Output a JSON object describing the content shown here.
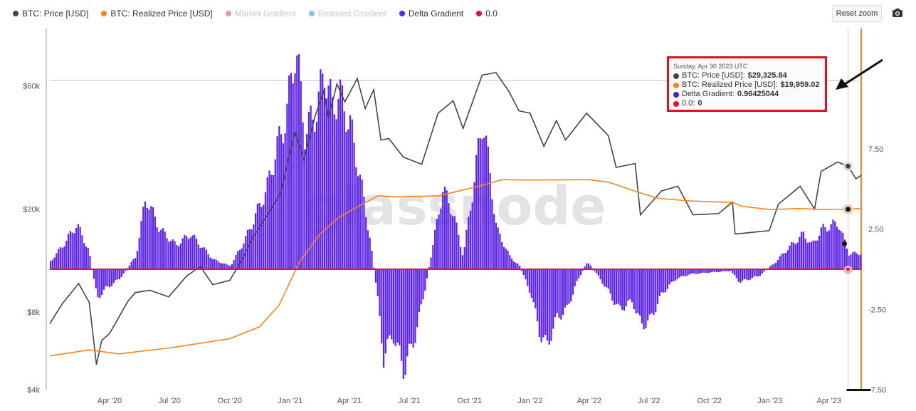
{
  "legend": [
    {
      "label": "BTC: Price [USD]",
      "color": "#444444",
      "enabled": true
    },
    {
      "label": "BTC: Realized Price [USD]",
      "color": "#f7851a",
      "enabled": true
    },
    {
      "label": "Market Gradient",
      "color": "#e07aa8",
      "enabled": false
    },
    {
      "label": "Realised Gradient",
      "color": "#5bbcd6",
      "enabled": false
    },
    {
      "label": "Delta Gradient",
      "color": "#5a1ff5",
      "enabled": true
    },
    {
      "label": "0.0",
      "color": "#e8102e",
      "enabled": true
    }
  ],
  "toolbar": {
    "reset_label": "Reset zoom",
    "camera_icon": "camera-icon"
  },
  "watermark": "glassnode",
  "tooltip": {
    "date": "Sunday, Apr 30 2023 UTC",
    "rows": [
      {
        "label": "BTC: Price [USD]: ",
        "value": "$29,325.84",
        "color": "#444444"
      },
      {
        "label": "BTC: Realized Price [USD]: ",
        "value": "$19,959.02",
        "color": "#f7851a"
      },
      {
        "label": "Delta Gradient: ",
        "value": "0.96425044",
        "color": "#3b1ee0"
      },
      {
        "label": "0.0: ",
        "value": "0",
        "color": "#e8102e"
      }
    ]
  },
  "chart_data": {
    "type": "line",
    "x_tick_labels": [
      "Apr '20",
      "Jul '20",
      "Oct '20",
      "Jan '21",
      "Apr '21",
      "Jul '21",
      "Oct '21",
      "Jan '22",
      "Apr '22",
      "Jul '22",
      "Oct '22",
      "Jan '23",
      "Apr '23"
    ],
    "y_left": {
      "scale": "log",
      "ticks": [
        "$4k",
        "$8k",
        "$20k",
        "$60k"
      ],
      "tick_values": [
        4000,
        8000,
        20000,
        60000
      ],
      "range": [
        4000,
        100000
      ]
    },
    "y_right": {
      "ticks": [
        "7.50",
        "2.50",
        "-2.50",
        "-7.50"
      ],
      "tick_values": [
        7.5,
        2.5,
        -2.5,
        -7.5
      ],
      "range": [
        -7.5,
        15
      ]
    },
    "x_range": [
      "2020-01-01",
      "2023-05-20"
    ],
    "series": [
      {
        "name": "BTC: Price [USD]",
        "axis": "left",
        "color": "#444444",
        "points": [
          [
            "2020-01-01",
            7200
          ],
          [
            "2020-01-20",
            8600
          ],
          [
            "2020-02-14",
            10300
          ],
          [
            "2020-03-01",
            8700
          ],
          [
            "2020-03-12",
            5000
          ],
          [
            "2020-03-20",
            6200
          ],
          [
            "2020-04-01",
            6600
          ],
          [
            "2020-04-29",
            8800
          ],
          [
            "2020-05-10",
            9500
          ],
          [
            "2020-06-01",
            9700
          ],
          [
            "2020-06-30",
            9150
          ],
          [
            "2020-07-27",
            11000
          ],
          [
            "2020-08-17",
            12000
          ],
          [
            "2020-09-05",
            10200
          ],
          [
            "2020-10-01",
            10600
          ],
          [
            "2020-10-21",
            12900
          ],
          [
            "2020-11-05",
            15500
          ],
          [
            "2020-11-30",
            19500
          ],
          [
            "2020-12-17",
            23000
          ],
          [
            "2021-01-08",
            40000
          ],
          [
            "2021-01-22",
            31000
          ],
          [
            "2021-02-08",
            46000
          ],
          [
            "2021-02-21",
            57000
          ],
          [
            "2021-02-28",
            45000
          ],
          [
            "2021-03-13",
            61000
          ],
          [
            "2021-03-25",
            52000
          ],
          [
            "2021-04-13",
            64000
          ],
          [
            "2021-04-25",
            49000
          ],
          [
            "2021-05-08",
            58000
          ],
          [
            "2021-05-19",
            37000
          ],
          [
            "2021-05-31",
            37500
          ],
          [
            "2021-06-22",
            31800
          ],
          [
            "2021-07-20",
            29800
          ],
          [
            "2021-08-14",
            47000
          ],
          [
            "2021-09-06",
            52500
          ],
          [
            "2021-09-21",
            41000
          ],
          [
            "2021-10-20",
            66000
          ],
          [
            "2021-11-10",
            67500
          ],
          [
            "2021-11-30",
            57000
          ],
          [
            "2021-12-15",
            48000
          ],
          [
            "2022-01-01",
            47000
          ],
          [
            "2022-01-22",
            35000
          ],
          [
            "2022-02-10",
            44000
          ],
          [
            "2022-02-24",
            37000
          ],
          [
            "2022-03-28",
            47000
          ],
          [
            "2022-04-30",
            38500
          ],
          [
            "2022-05-12",
            29000
          ],
          [
            "2022-06-10",
            30000
          ],
          [
            "2022-06-18",
            19000
          ],
          [
            "2022-07-20",
            23500
          ],
          [
            "2022-08-14",
            24500
          ],
          [
            "2022-09-06",
            19000
          ],
          [
            "2022-10-15",
            19200
          ],
          [
            "2022-11-05",
            21300
          ],
          [
            "2022-11-09",
            16000
          ],
          [
            "2022-12-31",
            16500
          ],
          [
            "2023-01-14",
            20900
          ],
          [
            "2023-02-16",
            24500
          ],
          [
            "2023-03-10",
            20000
          ],
          [
            "2023-03-20",
            28000
          ],
          [
            "2023-04-14",
            30400
          ],
          [
            "2023-04-30",
            29325.84
          ],
          [
            "2023-05-12",
            26200
          ],
          [
            "2023-05-20",
            27000
          ]
        ]
      },
      {
        "name": "BTC: Realized Price [USD]",
        "axis": "left",
        "color": "#f7851a",
        "points": [
          [
            "2020-01-01",
            5400
          ],
          [
            "2020-03-01",
            5700
          ],
          [
            "2020-04-15",
            5500
          ],
          [
            "2020-07-01",
            5800
          ],
          [
            "2020-10-01",
            6300
          ],
          [
            "2020-11-15",
            7000
          ],
          [
            "2020-12-15",
            8500
          ],
          [
            "2021-01-15",
            12500
          ],
          [
            "2021-02-15",
            16000
          ],
          [
            "2021-03-15",
            18500
          ],
          [
            "2021-04-15",
            20500
          ],
          [
            "2021-05-15",
            22500
          ],
          [
            "2021-06-15",
            22300
          ],
          [
            "2021-08-15",
            22500
          ],
          [
            "2021-10-15",
            24500
          ],
          [
            "2021-11-20",
            26000
          ],
          [
            "2022-01-01",
            25900
          ],
          [
            "2022-04-01",
            26000
          ],
          [
            "2022-05-01",
            25400
          ],
          [
            "2022-06-20",
            23000
          ],
          [
            "2022-07-15",
            22000
          ],
          [
            "2022-09-01",
            21500
          ],
          [
            "2022-11-05",
            21200
          ],
          [
            "2022-11-20",
            20500
          ],
          [
            "2023-01-01",
            19900
          ],
          [
            "2023-02-15",
            20100
          ],
          [
            "2023-03-15",
            19950
          ],
          [
            "2023-04-30",
            19959.02
          ],
          [
            "2023-05-20",
            20100
          ]
        ]
      },
      {
        "name": "Delta Gradient",
        "axis": "right",
        "color": "#5a1ff5",
        "style": "bars",
        "points": [
          [
            "2020-01-01",
            0.5
          ],
          [
            "2020-01-20",
            1.5
          ],
          [
            "2020-02-10",
            2.8
          ],
          [
            "2020-02-28",
            1.2
          ],
          [
            "2020-03-12",
            -1.8
          ],
          [
            "2020-03-25",
            -1.2
          ],
          [
            "2020-04-15",
            -0.6
          ],
          [
            "2020-05-10",
            0.8
          ],
          [
            "2020-05-25",
            4.5
          ],
          [
            "2020-06-15",
            2.5
          ],
          [
            "2020-07-10",
            1.5
          ],
          [
            "2020-08-01",
            2.2
          ],
          [
            "2020-09-05",
            0.6
          ],
          [
            "2020-10-01",
            0.2
          ],
          [
            "2020-10-25",
            2.0
          ],
          [
            "2020-11-25",
            5.0
          ],
          [
            "2020-12-10",
            7.5
          ],
          [
            "2020-12-25",
            9.5
          ],
          [
            "2021-01-08",
            14.0
          ],
          [
            "2021-01-22",
            8.5
          ],
          [
            "2021-02-10",
            10.0
          ],
          [
            "2021-02-21",
            12.5
          ],
          [
            "2021-03-05",
            10.0
          ],
          [
            "2021-03-15",
            11.0
          ],
          [
            "2021-04-01",
            9.0
          ],
          [
            "2021-04-15",
            6.0
          ],
          [
            "2021-05-01",
            2.0
          ],
          [
            "2021-05-12",
            -1.5
          ],
          [
            "2021-05-22",
            -5.5
          ],
          [
            "2021-06-05",
            -4.0
          ],
          [
            "2021-06-22",
            -6.3
          ],
          [
            "2021-07-10",
            -4.0
          ],
          [
            "2021-07-25",
            -1.0
          ],
          [
            "2021-08-05",
            1.5
          ],
          [
            "2021-08-20",
            5.0
          ],
          [
            "2021-09-05",
            3.5
          ],
          [
            "2021-09-20",
            0.8
          ],
          [
            "2021-10-05",
            5.0
          ],
          [
            "2021-10-20",
            9.5
          ],
          [
            "2021-11-10",
            2.5
          ],
          [
            "2021-11-30",
            0.8
          ],
          [
            "2021-12-15",
            0.2
          ],
          [
            "2022-01-01",
            -1.5
          ],
          [
            "2022-01-15",
            -4.0
          ],
          [
            "2022-01-25",
            -4.8
          ],
          [
            "2022-02-10",
            -3.0
          ],
          [
            "2022-02-25",
            -2.5
          ],
          [
            "2022-03-10",
            -1.0
          ],
          [
            "2022-03-28",
            0.5
          ],
          [
            "2022-04-15",
            -0.5
          ],
          [
            "2022-05-01",
            -1.5
          ],
          [
            "2022-05-15",
            -2.5
          ],
          [
            "2022-06-05",
            -2.0
          ],
          [
            "2022-06-18",
            -3.5
          ],
          [
            "2022-07-01",
            -3.2
          ],
          [
            "2022-07-20",
            -1.5
          ],
          [
            "2022-08-10",
            -0.6
          ],
          [
            "2022-09-01",
            -0.3
          ],
          [
            "2022-10-01",
            -0.2
          ],
          [
            "2022-11-01",
            -0.1
          ],
          [
            "2022-11-15",
            -0.8
          ],
          [
            "2022-12-15",
            -0.4
          ],
          [
            "2023-01-10",
            0.5
          ],
          [
            "2023-01-25",
            1.2
          ],
          [
            "2023-02-20",
            2.2
          ],
          [
            "2023-03-05",
            1.5
          ],
          [
            "2023-03-20",
            2.5
          ],
          [
            "2023-04-14",
            2.9
          ],
          [
            "2023-04-30",
            0.96425044
          ],
          [
            "2023-05-20",
            1.0
          ]
        ]
      },
      {
        "name": "0.0",
        "axis": "right",
        "color": "#e8102e",
        "points": [
          [
            "2020-01-01",
            0
          ],
          [
            "2023-05-20",
            0
          ]
        ]
      }
    ],
    "highlight_date": "2023-04-30",
    "reference_level": {
      "axis": "left",
      "value": 63000
    },
    "grid": false,
    "legend_position": "top-left"
  }
}
